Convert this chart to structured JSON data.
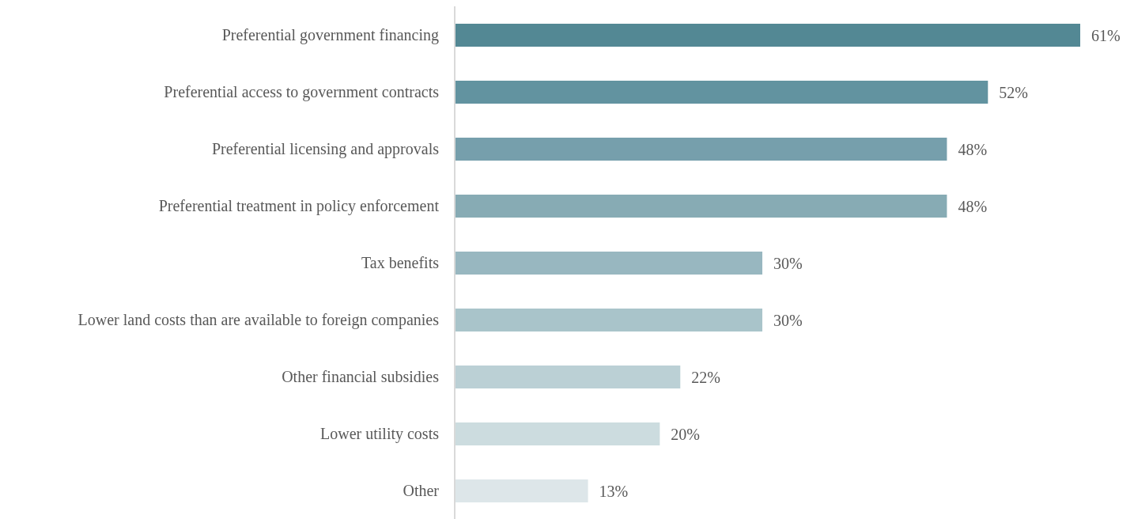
{
  "chart_data": {
    "type": "bar",
    "orientation": "horizontal",
    "categories": [
      "Preferential government financing",
      "Preferential access to government contracts",
      "Preferential licensing and approvals",
      "Preferential treatment in policy enforcement",
      "Tax benefits",
      "Lower land costs than are available to foreign companies",
      "Other financial subsidies",
      "Lower utility costs",
      "Other"
    ],
    "values": [
      61,
      52,
      48,
      48,
      30,
      30,
      22,
      20,
      13
    ],
    "value_labels": [
      "61%",
      "52%",
      "48%",
      "48%",
      "30%",
      "30%",
      "22%",
      "20%",
      "13%"
    ],
    "colors": [
      "#538894",
      "#6293a0",
      "#769fac",
      "#87abb4",
      "#98b7c0",
      "#a9c4ca",
      "#bbd0d5",
      "#ccdcdf",
      "#dde6e9"
    ],
    "grid": false,
    "legend": false
  }
}
